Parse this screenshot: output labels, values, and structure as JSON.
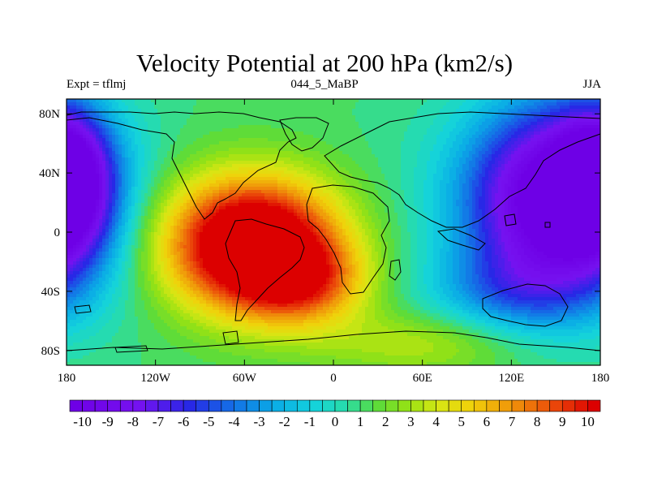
{
  "chart_data": {
    "type": "heatmap",
    "title": "Velocity Potential at 200 hPa (km2/s)",
    "subtitle_left": "Expt = tflmj",
    "subtitle_center": "044_5_MaBP",
    "subtitle_right": "JJA",
    "x_ticks": [
      "180",
      "120W",
      "60W",
      "0",
      "60E",
      "120E",
      "180"
    ],
    "y_ticks": [
      "80N",
      "40N",
      "0",
      "40S",
      "80S"
    ],
    "xlim": [
      -180,
      180
    ],
    "ylim": [
      -90,
      90
    ],
    "colorbar": {
      "min": -10.5,
      "max": 10.5,
      "step": 0.5,
      "labels": [
        "-10",
        "-9",
        "-8",
        "-7",
        "-6",
        "-5",
        "-4",
        "-3",
        "-2",
        "-1",
        "0",
        "1",
        "2",
        "3",
        "4",
        "5",
        "6",
        "7",
        "8",
        "9",
        "10"
      ]
    },
    "field_centers": [
      {
        "lon": -55,
        "lat": -5,
        "value": 10.5,
        "note": "maximum over South America / South Atlantic"
      },
      {
        "lon": 150,
        "lat": 25,
        "value": -10.5,
        "note": "minimum over western Pacific"
      },
      {
        "lon": -180,
        "lat": 30,
        "value": -9,
        "note": "minimum near dateline"
      }
    ]
  }
}
